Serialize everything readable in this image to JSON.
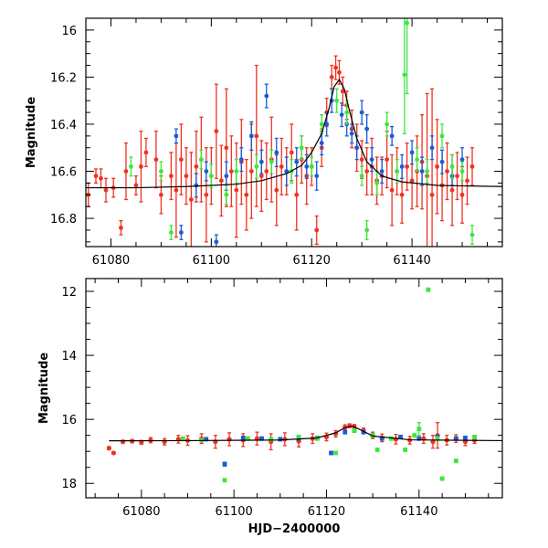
{
  "chart_data": [
    {
      "type": "scatter",
      "panel": "top",
      "title": "",
      "xlabel": "",
      "ylabel": "Magnitude",
      "xlim": [
        61075,
        61158
      ],
      "ylim": [
        16.92,
        15.95
      ],
      "y_inverted": true,
      "x_ticks": [
        61080,
        61100,
        61120,
        61140
      ],
      "x_tick_labels": [
        "61080",
        "61100",
        "61120",
        "61140"
      ],
      "y_ticks": [
        16,
        16.2,
        16.4,
        16.6,
        16.8
      ],
      "y_tick_labels": [
        "16",
        "16.2",
        "16.4",
        "16.6",
        "16.8"
      ],
      "grid": false,
      "model_curve": {
        "name": "microlensing model",
        "x": [
          61075,
          61085,
          61095,
          61105,
          61110,
          61115,
          61118,
          61120,
          61122,
          61123.5,
          61124.5,
          61125.5,
          61126.5,
          61127.5,
          61129,
          61131,
          61134,
          61138,
          61145,
          61158
        ],
        "y": [
          16.67,
          16.67,
          16.665,
          16.655,
          16.64,
          16.61,
          16.575,
          16.52,
          16.44,
          16.33,
          16.24,
          16.21,
          16.25,
          16.34,
          16.46,
          16.56,
          16.62,
          16.645,
          16.66,
          16.665
        ]
      },
      "series": [
        {
          "name": "red",
          "color": "#ee3322",
          "x": [
            61075.5,
            61077,
            61078,
            61079,
            61080.5,
            61082,
            61083,
            61085,
            61086,
            61087,
            61089,
            61090,
            61092,
            61093,
            61094,
            61095,
            61096,
            61097,
            61098,
            61099,
            61100,
            61101,
            61102,
            61103,
            61104,
            61105,
            61106,
            61107,
            61108,
            61109,
            61110,
            61111,
            61112,
            61113,
            61114,
            61115,
            61116,
            61117,
            61118,
            61119,
            61120,
            61121,
            61122,
            61123,
            61124,
            61124.8,
            61125.5,
            61126.2,
            61127,
            61128,
            61129,
            61130,
            61131,
            61132,
            61133,
            61134,
            61135,
            61136,
            61137,
            61138,
            61139,
            61140,
            61141,
            61142,
            61143,
            61144,
            61145,
            61146,
            61147,
            61148,
            61149,
            61150,
            61151,
            61152
          ],
          "y": [
            16.7,
            16.62,
            16.63,
            16.68,
            16.67,
            16.84,
            16.6,
            16.66,
            16.58,
            16.52,
            16.55,
            16.7,
            16.62,
            16.68,
            16.55,
            16.62,
            16.72,
            16.58,
            16.55,
            16.7,
            16.62,
            16.43,
            16.64,
            16.5,
            16.6,
            16.68,
            16.56,
            16.7,
            16.6,
            16.45,
            16.62,
            16.6,
            16.55,
            16.68,
            16.58,
            16.6,
            16.52,
            16.7,
            16.55,
            16.62,
            16.58,
            16.85,
            16.5,
            16.35,
            16.2,
            16.16,
            16.18,
            16.26,
            16.32,
            16.42,
            16.5,
            16.55,
            16.6,
            16.58,
            16.64,
            16.62,
            16.55,
            16.68,
            16.6,
            16.7,
            16.58,
            16.64,
            16.6,
            16.56,
            16.62,
            16.7,
            16.58,
            16.66,
            16.6,
            16.68,
            16.62,
            16.7,
            16.64,
            16.58
          ],
          "err": [
            0.05,
            0.03,
            0.04,
            0.05,
            0.04,
            0.03,
            0.12,
            0.04,
            0.15,
            0.06,
            0.12,
            0.08,
            0.1,
            0.2,
            0.15,
            0.12,
            0.2,
            0.15,
            0.18,
            0.2,
            0.12,
            0.2,
            0.15,
            0.25,
            0.15,
            0.2,
            0.18,
            0.15,
            0.2,
            0.3,
            0.15,
            0.12,
            0.18,
            0.15,
            0.12,
            0.1,
            0.12,
            0.15,
            0.1,
            0.12,
            0.08,
            0.06,
            0.08,
            0.06,
            0.05,
            0.05,
            0.05,
            0.06,
            0.06,
            0.08,
            0.1,
            0.08,
            0.1,
            0.12,
            0.1,
            0.08,
            0.12,
            0.15,
            0.1,
            0.12,
            0.1,
            0.12,
            0.15,
            0.2,
            0.35,
            0.45,
            0.2,
            0.15,
            0.12,
            0.15,
            0.1,
            0.12,
            0.1,
            0.08
          ]
        },
        {
          "name": "blue",
          "color": "#1a5bd8",
          "x": [
            61093,
            61094,
            61097,
            61099,
            61101,
            61103,
            61106,
            61108,
            61110,
            61111,
            61113,
            61115,
            61117,
            61119,
            61121,
            61122,
            61123,
            61124,
            61126,
            61127,
            61128,
            61129,
            61130,
            61131,
            61132,
            61134,
            61136,
            61138,
            61140,
            61142,
            61144,
            61146,
            61148,
            61150
          ],
          "y": [
            16.45,
            16.86,
            16.66,
            16.6,
            16.9,
            16.62,
            16.55,
            16.45,
            16.56,
            16.28,
            16.52,
            16.6,
            16.56,
            16.58,
            16.62,
            16.48,
            16.4,
            16.3,
            16.36,
            16.4,
            16.44,
            16.5,
            16.35,
            16.42,
            16.55,
            16.6,
            16.45,
            16.58,
            16.52,
            16.6,
            16.5,
            16.56,
            16.62,
            16.55
          ],
          "err": [
            0.03,
            0.03,
            0.05,
            0.04,
            0.03,
            0.06,
            0.05,
            0.06,
            0.05,
            0.05,
            0.06,
            0.06,
            0.06,
            0.05,
            0.06,
            0.05,
            0.05,
            0.05,
            0.05,
            0.05,
            0.04,
            0.05,
            0.05,
            0.06,
            0.05,
            0.05,
            0.04,
            0.05,
            0.05,
            0.06,
            0.05,
            0.05,
            0.04,
            0.05
          ]
        },
        {
          "name": "green",
          "color": "#3ee63e",
          "x": [
            61084,
            61090,
            61092,
            61098,
            61100,
            61103,
            61105,
            61109,
            61112,
            61116,
            61118,
            61120,
            61122,
            61125,
            61127,
            61130,
            61131,
            61133,
            61135,
            61137,
            61138.5,
            61139,
            61141,
            61143,
            61146,
            61148,
            61150,
            61152
          ],
          "y": [
            16.58,
            16.6,
            16.86,
            16.55,
            16.62,
            16.7,
            16.6,
            16.58,
            16.56,
            16.6,
            16.5,
            16.58,
            16.4,
            16.3,
            16.35,
            16.62,
            16.85,
            16.65,
            16.4,
            16.6,
            16.19,
            15.97,
            16.55,
            16.6,
            16.45,
            16.58,
            16.6,
            16.87
          ],
          "err": [
            0.04,
            0.04,
            0.03,
            0.04,
            0.05,
            0.04,
            0.05,
            0.05,
            0.05,
            0.05,
            0.05,
            0.04,
            0.04,
            0.05,
            0.05,
            0.04,
            0.04,
            0.05,
            0.05,
            0.05,
            0.25,
            0.3,
            0.05,
            0.05,
            0.05,
            0.05,
            0.04,
            0.04
          ]
        }
      ]
    },
    {
      "type": "scatter",
      "panel": "bottom",
      "title": "",
      "xlabel": "HJD−2400000",
      "ylabel": "Magnitude",
      "xlim": [
        61068,
        61158
      ],
      "ylim": [
        18.45,
        11.6
      ],
      "y_inverted": true,
      "x_ticks": [
        61080,
        61100,
        61120,
        61140
      ],
      "x_tick_labels": [
        "61080",
        "61100",
        "61120",
        "61140"
      ],
      "y_ticks": [
        12,
        14,
        16,
        18
      ],
      "y_tick_labels": [
        "12",
        "14",
        "16",
        "18"
      ],
      "grid": false,
      "model_curve": {
        "name": "microlensing model",
        "x": [
          61073,
          61090,
          61110,
          61118,
          61122,
          61124,
          61125.5,
          61127,
          61130,
          61138,
          61158
        ],
        "y": [
          16.67,
          16.665,
          16.645,
          16.58,
          16.42,
          16.26,
          16.21,
          16.3,
          16.52,
          16.64,
          16.665
        ]
      },
      "series": [
        {
          "name": "red",
          "color": "#ee3322",
          "x": [
            61073,
            61074,
            61076,
            61078,
            61080,
            61082,
            61085,
            61088,
            61090,
            61093,
            61096,
            61099,
            61102,
            61105,
            61108,
            61111,
            61114,
            61117,
            61120,
            61122,
            61124,
            61125,
            61126,
            61128,
            61130,
            61132,
            61135,
            61138,
            61141,
            61143,
            61144,
            61146,
            61148,
            61150,
            61152
          ],
          "y": [
            16.9,
            17.05,
            16.7,
            16.68,
            16.72,
            16.65,
            16.7,
            16.62,
            16.66,
            16.6,
            16.7,
            16.62,
            16.65,
            16.6,
            16.7,
            16.62,
            16.68,
            16.6,
            16.55,
            16.45,
            16.25,
            16.2,
            16.22,
            16.35,
            16.5,
            16.58,
            16.62,
            16.65,
            16.6,
            16.7,
            16.5,
            16.65,
            16.6,
            16.7,
            16.65
          ],
          "err": [
            0.05,
            0.04,
            0.05,
            0.05,
            0.06,
            0.08,
            0.1,
            0.12,
            0.15,
            0.15,
            0.2,
            0.2,
            0.2,
            0.2,
            0.25,
            0.2,
            0.18,
            0.15,
            0.12,
            0.1,
            0.08,
            0.06,
            0.06,
            0.08,
            0.1,
            0.12,
            0.15,
            0.12,
            0.15,
            0.2,
            0.4,
            0.15,
            0.12,
            0.12,
            0.1
          ]
        },
        {
          "name": "blue",
          "color": "#1a5bd8",
          "x": [
            61094,
            61098,
            61102,
            61106,
            61110,
            61114,
            61118,
            61121,
            61124,
            61126,
            61128,
            61130,
            61132,
            61136,
            61140,
            61144,
            61148,
            61150
          ],
          "y": [
            16.62,
            17.4,
            16.58,
            16.6,
            16.62,
            16.6,
            16.58,
            17.05,
            16.4,
            16.35,
            16.4,
            16.5,
            16.6,
            16.55,
            16.6,
            16.55,
            16.6,
            16.58
          ],
          "err": [
            0.04,
            0.06,
            0.05,
            0.05,
            0.05,
            0.05,
            0.05,
            0.05,
            0.05,
            0.05,
            0.05,
            0.05,
            0.05,
            0.05,
            0.05,
            0.05,
            0.05,
            0.05
          ]
        },
        {
          "name": "green",
          "color": "#3ee63e",
          "x": [
            61089,
            61093,
            61098,
            61103,
            61108,
            61114,
            61118,
            61122,
            61126,
            61130,
            61131,
            61134,
            61137,
            61139,
            61140,
            61142,
            61144,
            61145,
            61148,
            61152
          ],
          "y": [
            16.6,
            16.65,
            17.9,
            16.6,
            16.62,
            16.55,
            16.6,
            17.05,
            16.35,
            16.5,
            16.95,
            16.6,
            16.95,
            16.5,
            16.3,
            11.95,
            16.6,
            17.85,
            17.3,
            16.55
          ],
          "err": [
            0.04,
            0.04,
            0.04,
            0.05,
            0.05,
            0.05,
            0.05,
            0.05,
            0.05,
            0.05,
            0.04,
            0.05,
            0.05,
            0.05,
            0.2,
            0.05,
            0.05,
            0.05,
            0.05,
            0.05
          ]
        }
      ]
    }
  ]
}
